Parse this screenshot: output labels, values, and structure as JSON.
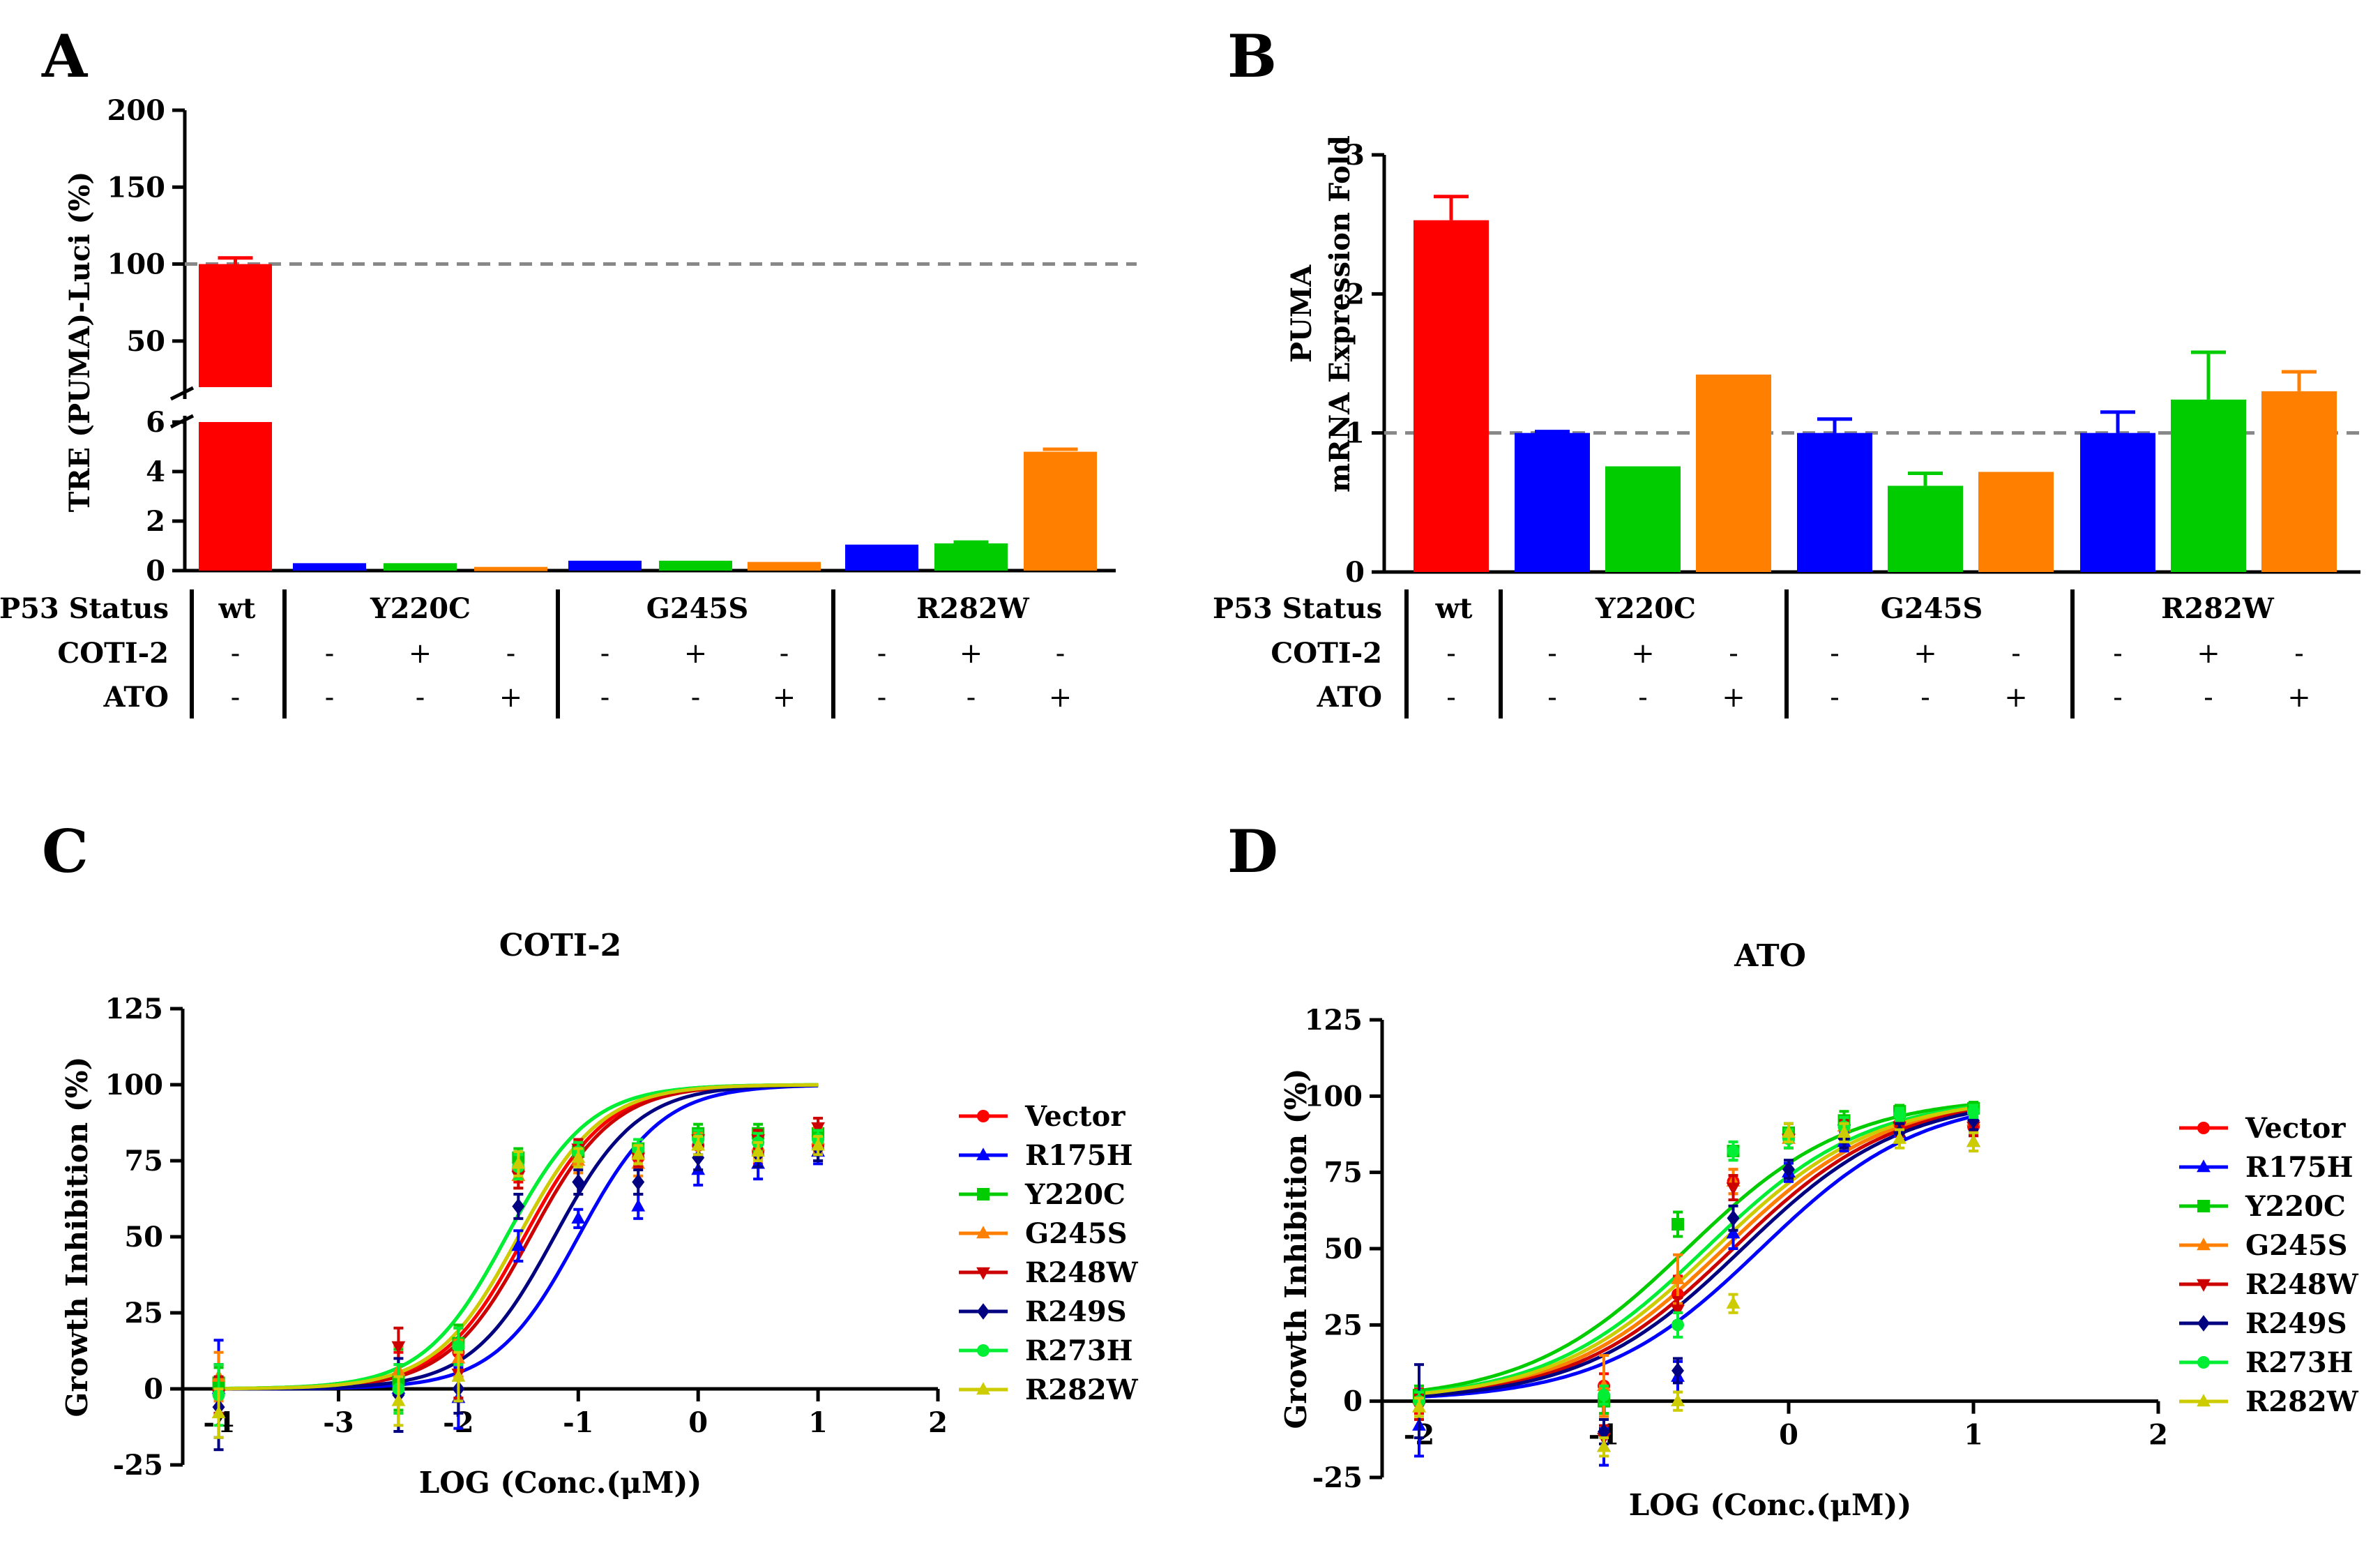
{
  "colors": {
    "red": "#ff0000",
    "blue": "#0000ff",
    "green": "#00cc00",
    "orange": "#ff8000",
    "darkred": "#cc0000",
    "navy": "#000080",
    "lime": "#00ee33",
    "olive": "#cccc00",
    "yellow": "#ffee00",
    "dash": "#888888"
  },
  "chart_data": [
    {
      "panel": "A",
      "type": "bar",
      "title": "",
      "xlabel": "",
      "ylabel": "TRE (PUMA)-Luci (%)",
      "axis_break": {
        "lower": [
          0,
          6
        ],
        "upper": [
          20,
          200
        ]
      },
      "lower_ticks": [
        "0",
        "2",
        "4",
        "6"
      ],
      "upper_ticks": [
        "50",
        "100",
        "150",
        "200"
      ],
      "reference_line": 100,
      "bars": [
        {
          "group": "wt",
          "coti2": "-",
          "ato": "-",
          "value": 100,
          "error": 4,
          "color": "#ff0000"
        },
        {
          "group": "Y220C",
          "coti2": "-",
          "ato": "-",
          "value": 0.3,
          "error": 0,
          "color": "#0000ff"
        },
        {
          "group": "Y220C",
          "coti2": "+",
          "ato": "-",
          "value": 0.3,
          "error": 0,
          "color": "#00cc00"
        },
        {
          "group": "Y220C",
          "coti2": "-",
          "ato": "+",
          "value": 0.15,
          "error": 0,
          "color": "#ff8000"
        },
        {
          "group": "G245S",
          "coti2": "-",
          "ato": "-",
          "value": 0.4,
          "error": 0,
          "color": "#0000ff"
        },
        {
          "group": "G245S",
          "coti2": "+",
          "ato": "-",
          "value": 0.4,
          "error": 0,
          "color": "#00cc00"
        },
        {
          "group": "G245S",
          "coti2": "-",
          "ato": "+",
          "value": 0.35,
          "error": 0,
          "color": "#ff8000"
        },
        {
          "group": "R282W",
          "coti2": "-",
          "ato": "-",
          "value": 1.05,
          "error": 0,
          "color": "#0000ff"
        },
        {
          "group": "R282W",
          "coti2": "+",
          "ato": "-",
          "value": 1.1,
          "error": 0.05,
          "color": "#00cc00"
        },
        {
          "group": "R282W",
          "coti2": "-",
          "ato": "+",
          "value": 4.8,
          "error": 0.1,
          "color": "#ff8000"
        }
      ],
      "row_labels": [
        "P53 Status",
        "COTI-2",
        "ATO"
      ],
      "group_labels": [
        "wt",
        "Y220C",
        "G245S",
        "R282W"
      ]
    },
    {
      "panel": "B",
      "type": "bar",
      "title": "",
      "xlabel": "",
      "ylabel_lines": [
        "PUMA",
        "mRNA Expression Fold"
      ],
      "ylim": [
        0,
        3
      ],
      "ticks": [
        "0",
        "1",
        "2",
        "3"
      ],
      "reference_line": 1,
      "bars": [
        {
          "group": "wt",
          "coti2": "-",
          "ato": "-",
          "value": 2.53,
          "error": 0.17,
          "color": "#ff0000"
        },
        {
          "group": "Y220C",
          "coti2": "-",
          "ato": "-",
          "value": 1.0,
          "error": 0.01,
          "color": "#0000ff"
        },
        {
          "group": "Y220C",
          "coti2": "+",
          "ato": "-",
          "value": 0.76,
          "error": 0,
          "color": "#00cc00"
        },
        {
          "group": "Y220C",
          "coti2": "-",
          "ato": "+",
          "value": 1.42,
          "error": 0,
          "color": "#ff8000"
        },
        {
          "group": "G245S",
          "coti2": "-",
          "ato": "-",
          "value": 1.0,
          "error": 0.1,
          "color": "#0000ff"
        },
        {
          "group": "G245S",
          "coti2": "+",
          "ato": "-",
          "value": 0.62,
          "error": 0.09,
          "color": "#00cc00"
        },
        {
          "group": "G245S",
          "coti2": "-",
          "ato": "+",
          "value": 0.72,
          "error": 0,
          "color": "#ff8000"
        },
        {
          "group": "R282W",
          "coti2": "-",
          "ato": "-",
          "value": 1.0,
          "error": 0.15,
          "color": "#0000ff"
        },
        {
          "group": "R282W",
          "coti2": "+",
          "ato": "-",
          "value": 1.24,
          "error": 0.34,
          "color": "#00cc00"
        },
        {
          "group": "R282W",
          "coti2": "-",
          "ato": "+",
          "value": 1.3,
          "error": 0.14,
          "color": "#ff8000"
        }
      ],
      "row_labels": [
        "P53 Status",
        "COTI-2",
        "ATO"
      ],
      "group_labels": [
        "wt",
        "Y220C",
        "G245S",
        "R282W"
      ]
    },
    {
      "panel": "C",
      "type": "scatter",
      "title": "COTI-2",
      "xlabel": "LOG (Conc.(μM))",
      "ylabel": "Growth Inhibition (%)",
      "xlim": [
        -4.3,
        2
      ],
      "ylim": [
        -25,
        125
      ],
      "xticks": [
        "-4",
        "-3",
        "-2",
        "-1",
        "0",
        "1",
        "2"
      ],
      "yticks": [
        "-25",
        "0",
        "25",
        "50",
        "75",
        "100",
        "125"
      ],
      "x": [
        -4,
        -2.5,
        -2,
        -1.5,
        -1,
        -0.5,
        0,
        0.5,
        1
      ],
      "series": [
        {
          "name": "Vector",
          "color": "#ff0000",
          "marker": "circle",
          "ec50": -1.45,
          "values": [
            0,
            2,
            12,
            72,
            78,
            76,
            80,
            78,
            80
          ],
          "err": [
            8,
            10,
            8,
            4,
            3,
            3,
            4,
            4,
            5
          ]
        },
        {
          "name": "R175H",
          "color": "#0000ff",
          "marker": "tri-up",
          "ec50": -1.0,
          "values": [
            0,
            0,
            -3,
            47,
            56,
            60,
            72,
            74,
            78
          ],
          "err": [
            16,
            14,
            10,
            5,
            3,
            4,
            5,
            5,
            4
          ]
        },
        {
          "name": "Y220C",
          "color": "#00cc00",
          "marker": "square",
          "ec50": -1.6,
          "values": [
            2,
            3,
            15,
            76,
            78,
            79,
            84,
            84,
            84
          ],
          "err": [
            5,
            10,
            6,
            3,
            3,
            3,
            3,
            3,
            3
          ]
        },
        {
          "name": "G245S",
          "color": "#ff8000",
          "marker": "tri-up",
          "ec50": -1.5,
          "values": [
            4,
            6,
            10,
            70,
            75,
            74,
            80,
            80,
            82
          ],
          "err": [
            8,
            8,
            6,
            4,
            4,
            4,
            4,
            4,
            4
          ]
        },
        {
          "name": "R248W",
          "color": "#cc0000",
          "marker": "tri-down",
          "ec50": -1.4,
          "values": [
            -2,
            14,
            5,
            70,
            79,
            76,
            82,
            82,
            86
          ],
          "err": [
            6,
            6,
            8,
            4,
            3,
            3,
            3,
            3,
            3
          ]
        },
        {
          "name": "R249S",
          "color": "#000080",
          "marker": "diamond",
          "ec50": -1.2,
          "values": [
            -6,
            -2,
            0,
            60,
            68,
            68,
            76,
            77,
            79
          ],
          "err": [
            14,
            12,
            8,
            4,
            4,
            4,
            4,
            4,
            4
          ]
        },
        {
          "name": "R273H",
          "color": "#00ee33",
          "marker": "circle",
          "ec50": -1.6,
          "values": [
            -2,
            0,
            14,
            73,
            78,
            79,
            82,
            81,
            82
          ],
          "err": [
            10,
            8,
            6,
            4,
            3,
            3,
            3,
            3,
            3
          ]
        },
        {
          "name": "R282W",
          "color": "#cccc00",
          "marker": "tri-up",
          "ec50": -1.5,
          "values": [
            -8,
            -4,
            4,
            74,
            76,
            77,
            80,
            78,
            80
          ],
          "err": [
            8,
            8,
            8,
            4,
            3,
            3,
            3,
            3,
            3
          ]
        }
      ]
    },
    {
      "panel": "D",
      "type": "scatter",
      "title": "ATO",
      "xlabel": "LOG (Conc.(μM))",
      "ylabel": "Growth Inhibition (%)",
      "xlim": [
        -2.2,
        2
      ],
      "ylim": [
        -25,
        125
      ],
      "xticks": [
        "-2",
        "-1",
        "0",
        "1",
        "2"
      ],
      "yticks": [
        "-25",
        "0",
        "25",
        "50",
        "75",
        "100",
        "125"
      ],
      "x": [
        -2,
        -1,
        -0.6,
        -0.3,
        0,
        0.3,
        0.6,
        1
      ],
      "series": [
        {
          "name": "Vector",
          "color": "#ff0000",
          "marker": "circle",
          "ec50": -0.35,
          "values": [
            0,
            5,
            35,
            72,
            88,
            90,
            91,
            90
          ],
          "err": [
            4,
            4,
            6,
            4,
            3,
            3,
            3,
            3
          ]
        },
        {
          "name": "R175H",
          "color": "#0000ff",
          "marker": "tri-up",
          "ec50": -0.15,
          "values": [
            -8,
            -15,
            8,
            55,
            75,
            85,
            88,
            85
          ],
          "err": [
            10,
            6,
            5,
            5,
            3,
            3,
            3,
            3
          ]
        },
        {
          "name": "Y220C",
          "color": "#00cc00",
          "marker": "square",
          "ec50": -0.55,
          "values": [
            2,
            0,
            58,
            82,
            88,
            92,
            95,
            96
          ],
          "err": [
            3,
            4,
            4,
            3,
            3,
            3,
            2,
            2
          ]
        },
        {
          "name": "G245S",
          "color": "#ff8000",
          "marker": "tri-up",
          "ec50": -0.35,
          "values": [
            -2,
            5,
            40,
            72,
            86,
            90,
            92,
            92
          ],
          "err": [
            4,
            10,
            8,
            4,
            3,
            3,
            3,
            3
          ]
        },
        {
          "name": "R248W",
          "color": "#cc0000",
          "marker": "tri-down",
          "ec50": -0.3,
          "values": [
            -2,
            -12,
            30,
            70,
            86,
            89,
            90,
            90
          ],
          "err": [
            4,
            4,
            4,
            4,
            3,
            3,
            3,
            3
          ]
        },
        {
          "name": "R249S",
          "color": "#000080",
          "marker": "diamond",
          "ec50": -0.25,
          "values": [
            0,
            -10,
            10,
            60,
            76,
            86,
            88,
            92
          ],
          "err": [
            12,
            4,
            4,
            4,
            3,
            3,
            3,
            3
          ]
        },
        {
          "name": "R273H",
          "color": "#00ee33",
          "marker": "circle",
          "ec50": -0.45,
          "values": [
            0,
            2,
            25,
            82,
            86,
            90,
            94,
            95
          ],
          "err": [
            3,
            3,
            4,
            3,
            3,
            3,
            2,
            2
          ]
        },
        {
          "name": "R282W",
          "color": "#cccc00",
          "marker": "tri-up",
          "ec50": -0.4,
          "values": [
            -2,
            -15,
            0,
            32,
            88,
            88,
            86,
            85
          ],
          "err": [
            3,
            3,
            3,
            3,
            3,
            3,
            3,
            3
          ]
        }
      ]
    }
  ]
}
